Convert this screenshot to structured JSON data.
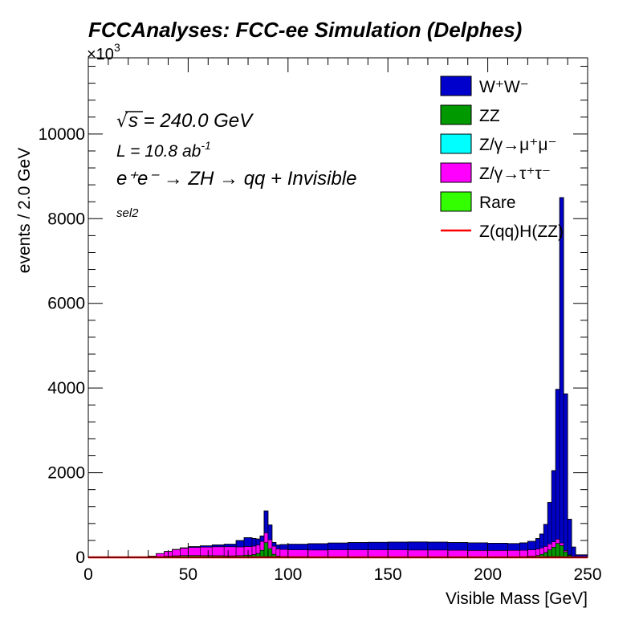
{
  "header": {
    "title": "FCCAnalyses: FCC-ee Simulation (Delphes)",
    "exponent_prefix": "×10",
    "exponent_power": "3"
  },
  "annotations": {
    "sqrt_symbol": "√",
    "sqrt_arg": "s",
    "energy": " = 240.0 GeV",
    "lumi_prefix": "L = 10.8 ab",
    "lumi_power": "-1",
    "process": "e⁺e⁻ → ZH → qq + Invisible",
    "selection": "sel2"
  },
  "chart_data": {
    "type": "histogram",
    "stacked": true,
    "xlabel": "Visible Mass [GeV]",
    "ylabel": "events / 2.0 GeV",
    "xlim": [
      0,
      250
    ],
    "ylim": [
      0,
      11800
    ],
    "y_multiplier": 1000,
    "bin_width": 2.0,
    "grid": false,
    "legend_position": "top-right",
    "x_ticks": [
      0,
      50,
      100,
      150,
      200,
      250
    ],
    "y_ticks": [
      0,
      2000,
      4000,
      6000,
      8000,
      10000
    ],
    "bin_edges_start": [
      0,
      30,
      34,
      38,
      42,
      46,
      50,
      56,
      62,
      68,
      74,
      78,
      82,
      84,
      86,
      88,
      90,
      92,
      94,
      96,
      100,
      110,
      120,
      130,
      140,
      150,
      160,
      170,
      180,
      190,
      200,
      210,
      216,
      220,
      224,
      226,
      228,
      230,
      232,
      234,
      236,
      238,
      240,
      242,
      244
    ],
    "bin_edges_end": [
      30,
      34,
      38,
      42,
      46,
      50,
      56,
      62,
      68,
      74,
      78,
      82,
      84,
      86,
      88,
      90,
      92,
      94,
      96,
      100,
      110,
      120,
      130,
      140,
      150,
      160,
      170,
      180,
      190,
      200,
      210,
      216,
      220,
      224,
      226,
      228,
      230,
      232,
      234,
      236,
      238,
      240,
      242,
      244,
      250
    ],
    "series": [
      {
        "name": "Rare",
        "color": "#33ff00",
        "values": [
          0,
          2,
          5,
          8,
          10,
          12,
          14,
          14,
          14,
          12,
          12,
          12,
          12,
          14,
          16,
          18,
          16,
          14,
          12,
          10,
          8,
          6,
          6,
          6,
          6,
          6,
          6,
          6,
          6,
          6,
          6,
          6,
          6,
          8,
          10,
          12,
          15,
          18,
          20,
          20,
          18,
          12,
          8,
          4,
          0
        ]
      },
      {
        "name": "ZZ",
        "color": "#009900",
        "values": [
          0,
          5,
          15,
          20,
          28,
          32,
          30,
          28,
          26,
          24,
          30,
          40,
          55,
          80,
          150,
          330,
          190,
          60,
          20,
          12,
          10,
          8,
          8,
          8,
          8,
          8,
          8,
          8,
          8,
          8,
          8,
          10,
          12,
          20,
          35,
          60,
          100,
          160,
          220,
          310,
          260,
          120,
          40,
          10,
          0
        ]
      },
      {
        "name": "Z/γ→τ⁺τ⁻",
        "color": "#ff00ff",
        "values": [
          0,
          20,
          70,
          110,
          145,
          170,
          190,
          200,
          210,
          215,
          205,
          205,
          200,
          200,
          210,
          230,
          210,
          190,
          170,
          165,
          160,
          160,
          165,
          165,
          165,
          165,
          160,
          160,
          155,
          150,
          150,
          150,
          150,
          150,
          150,
          150,
          145,
          140,
          130,
          100,
          60,
          30,
          10,
          0,
          0
        ]
      },
      {
        "name": "Z/γ→μ⁺μ⁻",
        "color": "#00ffff",
        "values": [
          0,
          0,
          0,
          0,
          0,
          0,
          0,
          0,
          0,
          0,
          0,
          0,
          0,
          0,
          0,
          0,
          0,
          0,
          0,
          0,
          0,
          0,
          0,
          0,
          0,
          0,
          0,
          0,
          0,
          0,
          0,
          0,
          0,
          0,
          0,
          0,
          0,
          0,
          0,
          0,
          0,
          0,
          0,
          0,
          0
        ]
      },
      {
        "name": "W⁺W⁻",
        "color": "#0000cc",
        "values": [
          0,
          0,
          0,
          2,
          5,
          10,
          20,
          30,
          45,
          60,
          150,
          210,
          180,
          140,
          130,
          520,
          350,
          90,
          90,
          115,
          132,
          150,
          160,
          172,
          177,
          182,
          190,
          185,
          182,
          180,
          170,
          160,
          175,
          200,
          250,
          330,
          520,
          980,
          1680,
          3540,
          8160,
          3700,
          842,
          230,
          60
        ]
      }
    ],
    "signal": {
      "name": "Z(qq)H(ZZ)",
      "color": "#ff0000",
      "values": [
        0,
        0,
        0,
        0,
        0,
        0,
        0,
        0,
        0,
        0,
        0,
        0,
        0,
        0,
        0,
        0,
        0,
        0,
        0,
        0,
        0,
        0,
        0,
        0,
        0,
        0,
        0,
        0,
        0,
        0,
        0,
        0,
        0,
        0,
        0,
        0,
        0,
        0,
        0,
        0,
        0,
        0,
        0,
        0,
        0
      ]
    },
    "legend_order": [
      "W⁺W⁻",
      "ZZ",
      "Z/γ→μ⁺μ⁻",
      "Z/γ→τ⁺τ⁻",
      "Rare",
      "Z(qq)H(ZZ)"
    ]
  }
}
